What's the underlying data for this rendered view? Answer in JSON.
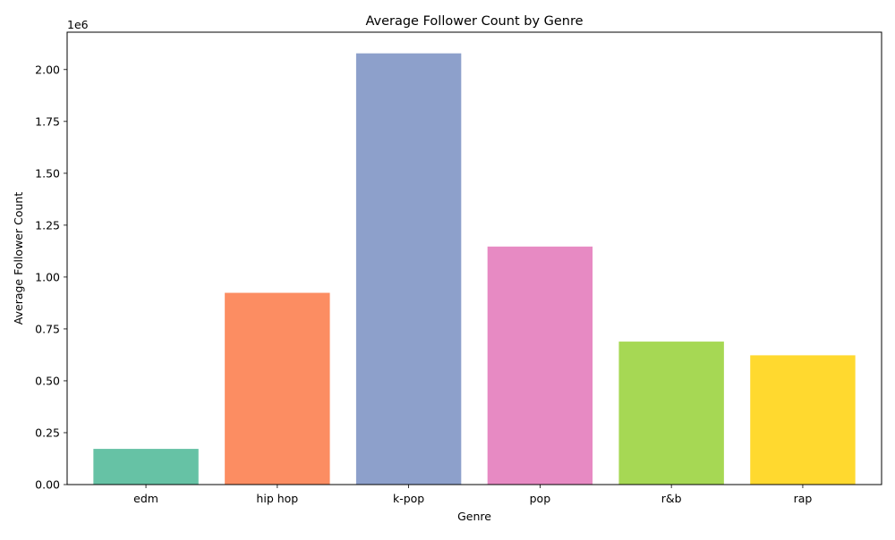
{
  "chart_data": {
    "type": "bar",
    "title": "Average Follower Count by Genre",
    "xlabel": "Genre",
    "ylabel": "Average Follower Count",
    "y_offset_label": "1e6",
    "categories": [
      "edm",
      "hip hop",
      "k-pop",
      "pop",
      "r&b",
      "rap"
    ],
    "values": [
      172000,
      924000,
      2078000,
      1147000,
      689000,
      623000
    ],
    "colors": [
      "#66c2a5",
      "#fc8d62",
      "#8da0cb",
      "#e78ac3",
      "#a6d854",
      "#ffd92f"
    ],
    "ylim": [
      0,
      2180000
    ],
    "y_scale_factor": 1000000,
    "yticks": [
      0,
      250000,
      500000,
      750000,
      1000000,
      1250000,
      1500000,
      1750000,
      2000000
    ],
    "ytick_labels": [
      "0.00",
      "0.25",
      "0.50",
      "0.75",
      "1.00",
      "1.25",
      "1.50",
      "1.75",
      "2.00"
    ],
    "grid": false,
    "legend": "none"
  }
}
